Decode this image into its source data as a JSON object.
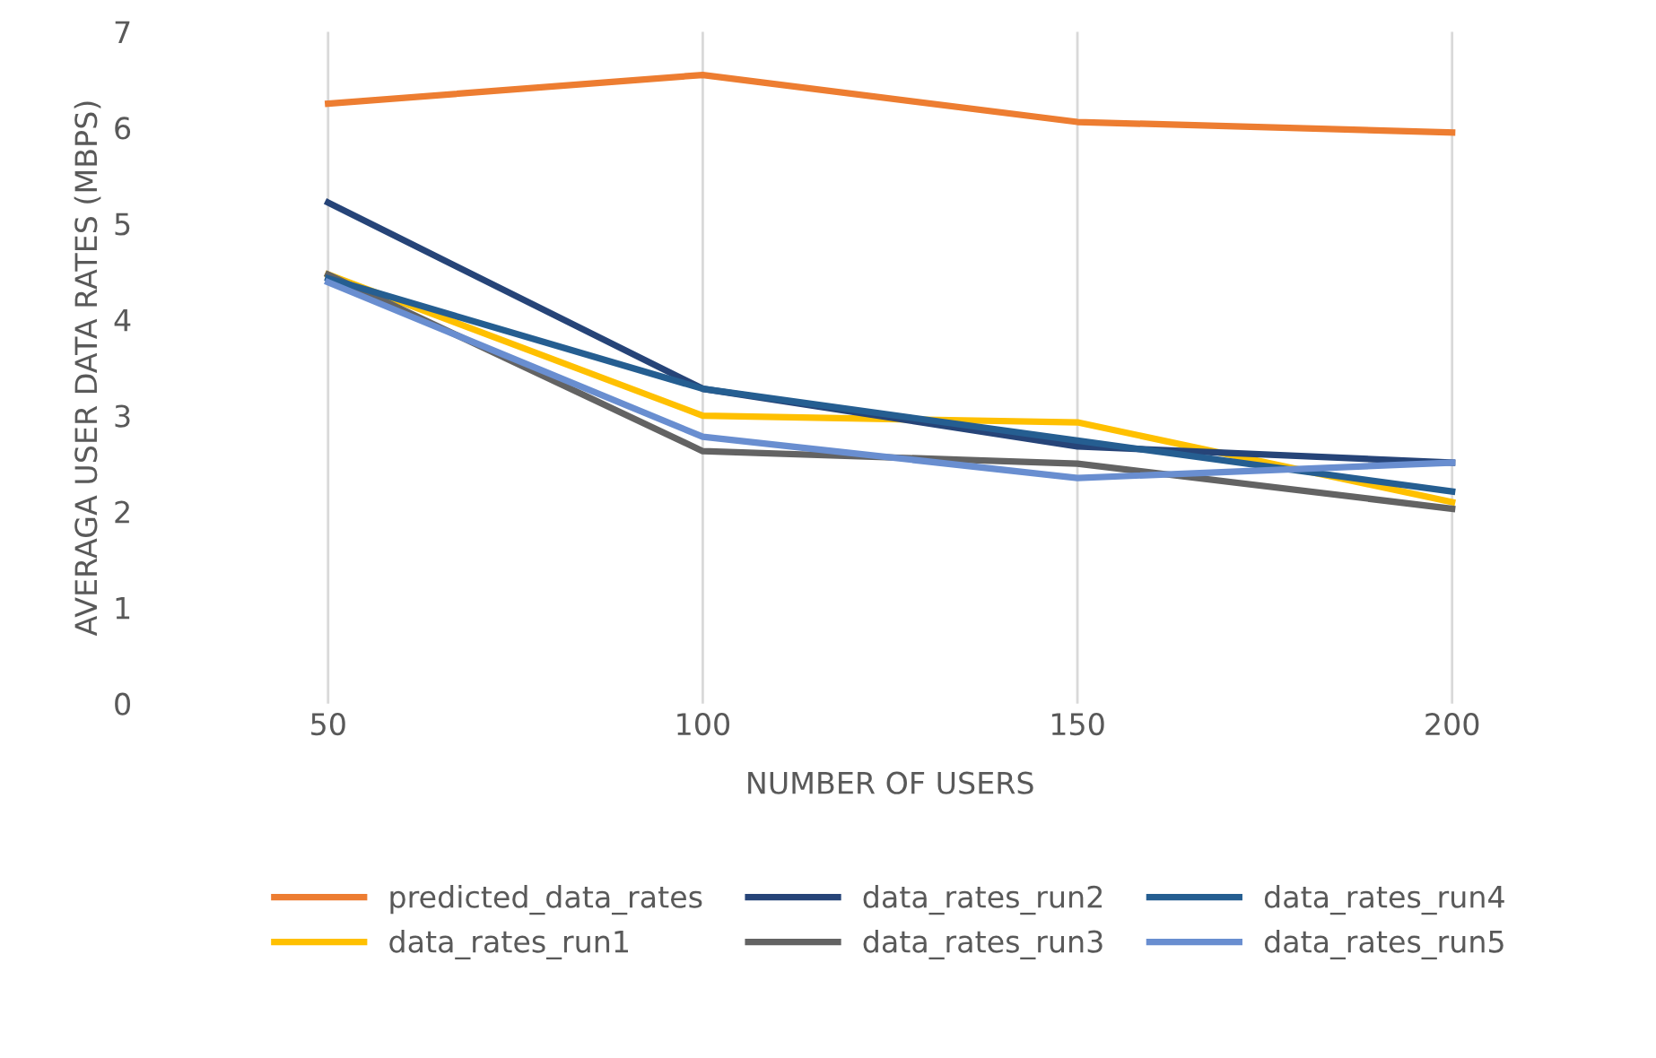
{
  "chart_data": {
    "type": "line",
    "xlabel": "NUMBER OF USERS",
    "ylabel": "AVERAGA USER DATA RATES (MBPS)",
    "categories": [
      "50",
      "100",
      "150",
      "200"
    ],
    "ylim": [
      0,
      7
    ],
    "yticks": [
      0,
      1,
      2,
      3,
      4,
      5,
      6,
      7
    ],
    "grid": "x",
    "legend": "bottom",
    "marker": "none",
    "line_style": "solid",
    "series": [
      {
        "name": "predicted_data_rates",
        "color": "#ed7d31",
        "values": [
          6.25,
          6.55,
          6.06,
          5.95
        ]
      },
      {
        "name": "data_rates_run1",
        "color": "#ffc000",
        "values": [
          4.47,
          3.0,
          2.93,
          2.1
        ]
      },
      {
        "name": "data_rates_run2",
        "color": "#264478",
        "values": [
          5.22,
          3.28,
          2.68,
          2.51
        ]
      },
      {
        "name": "data_rates_run3",
        "color": "#636363",
        "values": [
          4.47,
          2.63,
          2.5,
          2.03
        ]
      },
      {
        "name": "data_rates_run4",
        "color": "#255e91",
        "values": [
          4.43,
          3.28,
          2.74,
          2.21
        ]
      },
      {
        "name": "data_rates_run5",
        "color": "#698ed0",
        "values": [
          4.39,
          2.78,
          2.35,
          2.51
        ]
      }
    ]
  }
}
